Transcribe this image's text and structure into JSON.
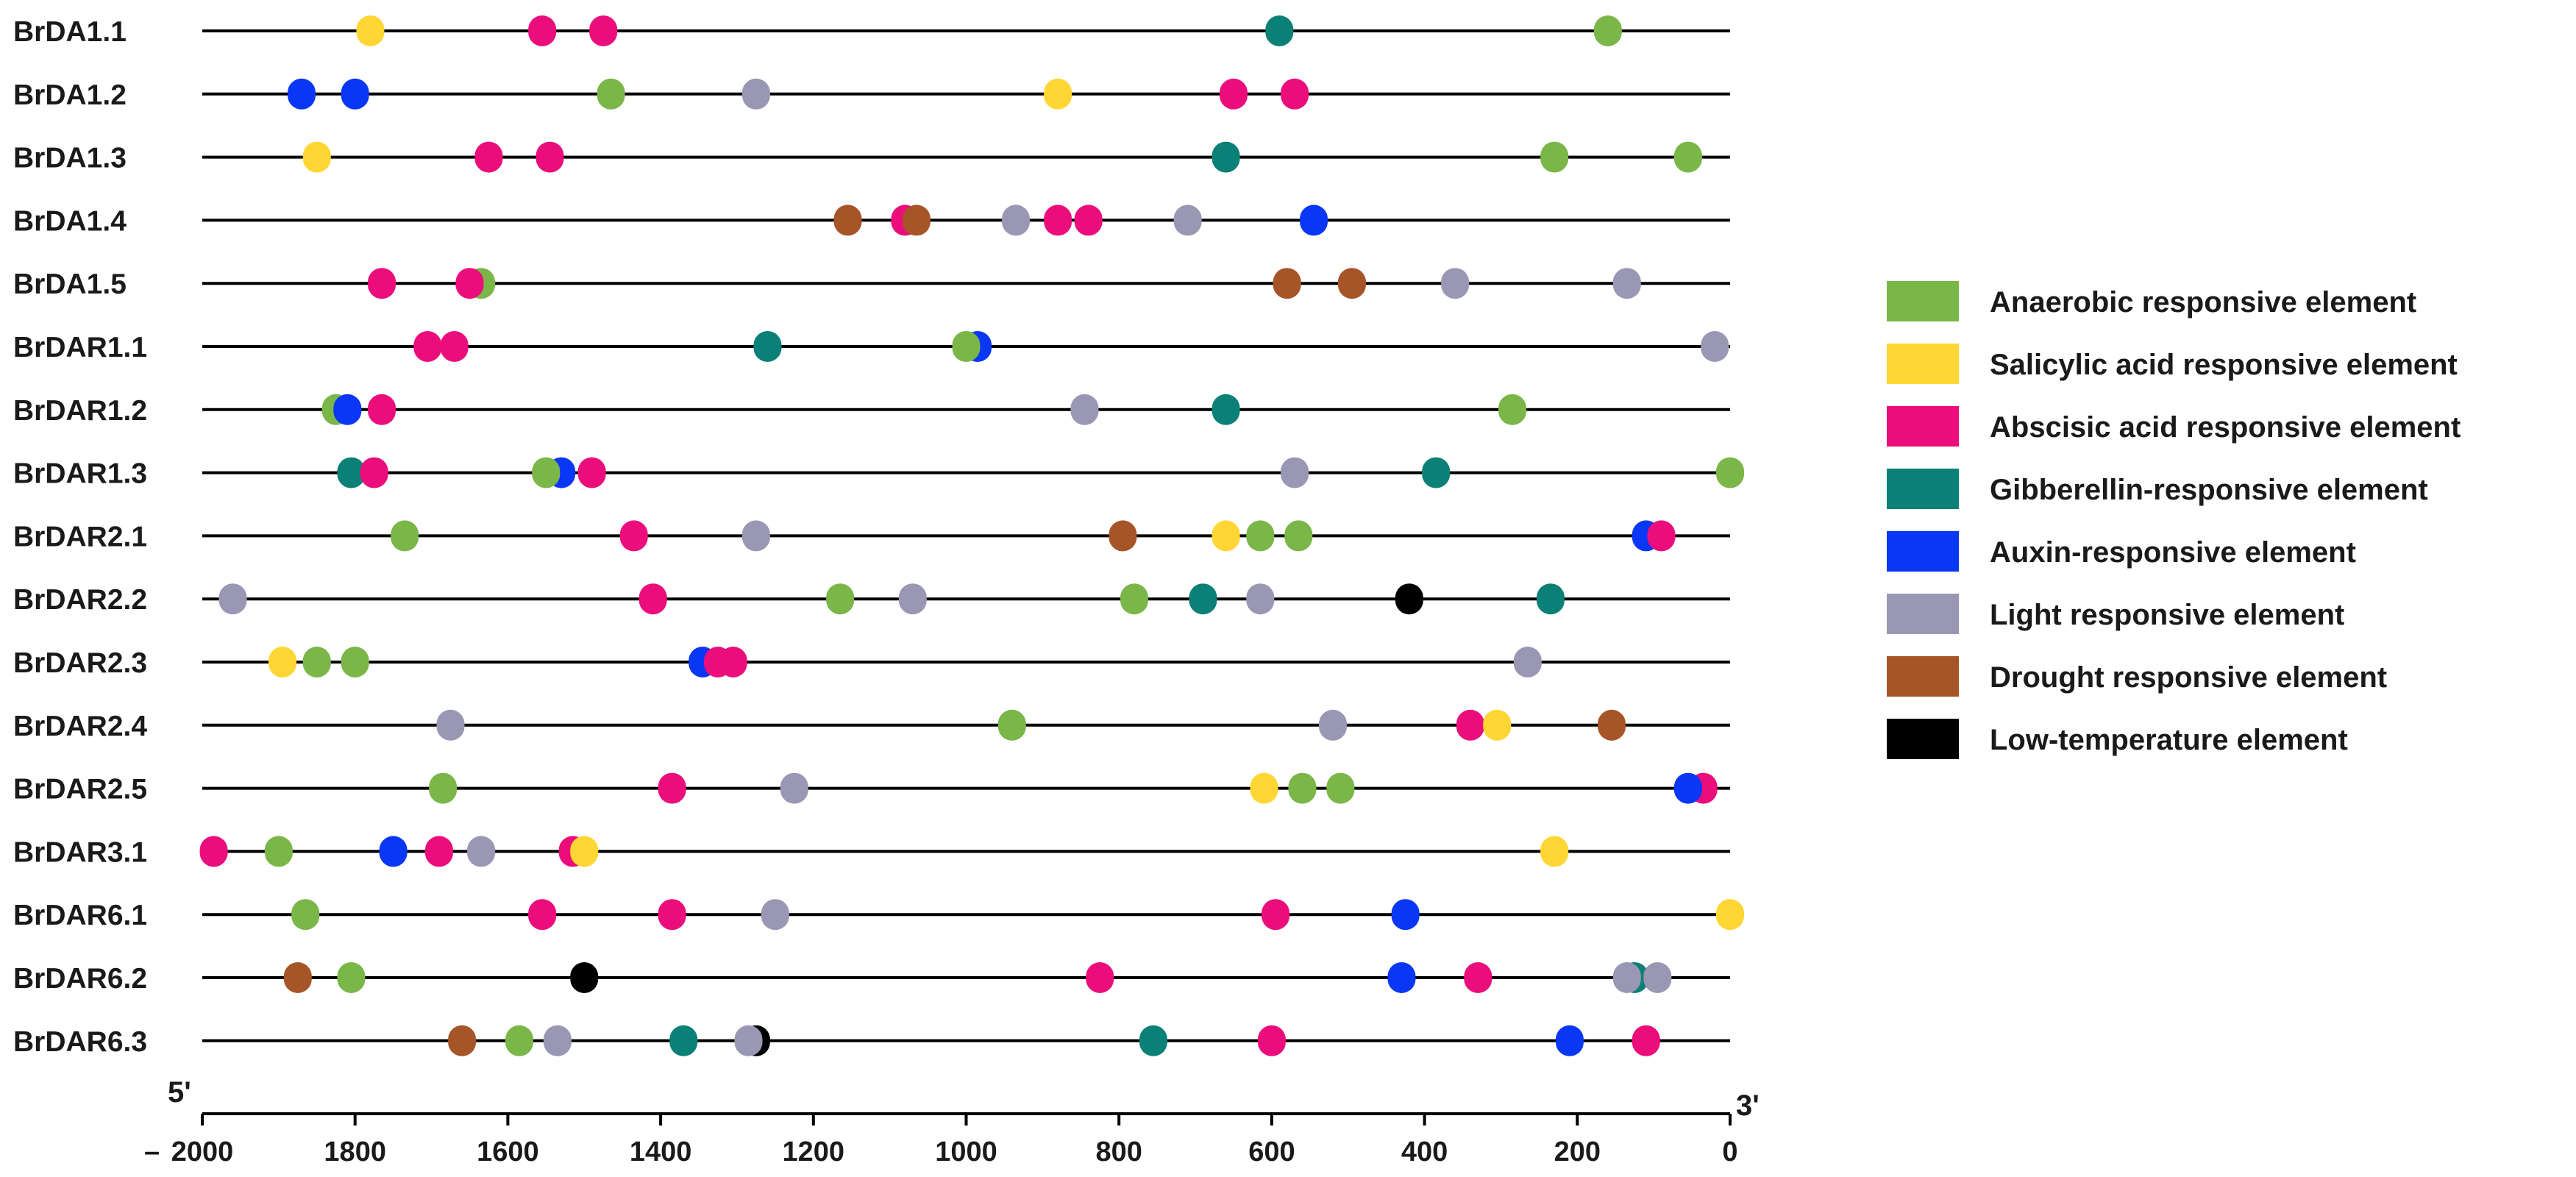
{
  "chart_data": {
    "type": "scatter",
    "xlim": [
      2000,
      0
    ],
    "x_ticks": [
      "2000",
      "1800",
      "1600",
      "1400",
      "1200",
      "1000",
      "800",
      "600",
      "400",
      "200",
      "0"
    ],
    "x_tick_values": [
      2000,
      1800,
      1600,
      1400,
      1200,
      1000,
      800,
      600,
      400,
      200,
      0
    ],
    "axis_prefix": "–",
    "left_end_label": "5'",
    "right_end_label": "3'",
    "legend_position": "right",
    "element_types": [
      {
        "key": "anaerobic",
        "label": "Anaerobic responsive element",
        "color": "#7ab648"
      },
      {
        "key": "salicylic",
        "label": "Salicylic acid responsive element",
        "color": "#ffd633"
      },
      {
        "key": "abscisic",
        "label": "Abscisic acid responsive element",
        "color": "#ec0d7c"
      },
      {
        "key": "gibberellin",
        "label": "Gibberellin-responsive element",
        "color": "#0b8077"
      },
      {
        "key": "auxin",
        "label": "Auxin-responsive element",
        "color": "#0a36f5"
      },
      {
        "key": "light",
        "label": "Light responsive element",
        "color": "#9a97b4"
      },
      {
        "key": "drought",
        "label": "Drought responsive element",
        "color": "#a65528"
      },
      {
        "key": "lowtemp",
        "label": "Low-temperature element",
        "color": "#000000"
      }
    ],
    "genes": [
      {
        "name": "BrDA1.1",
        "elements": [
          {
            "type": "salicylic",
            "x": 1780
          },
          {
            "type": "abscisic",
            "x": 1555
          },
          {
            "type": "abscisic",
            "x": 1475
          },
          {
            "type": "gibberellin",
            "x": 590
          },
          {
            "type": "anaerobic",
            "x": 160
          }
        ]
      },
      {
        "name": "BrDA1.2",
        "elements": [
          {
            "type": "auxin",
            "x": 1870
          },
          {
            "type": "auxin",
            "x": 1800
          },
          {
            "type": "anaerobic",
            "x": 1465
          },
          {
            "type": "light",
            "x": 1275
          },
          {
            "type": "salicylic",
            "x": 880
          },
          {
            "type": "abscisic",
            "x": 650
          },
          {
            "type": "abscisic",
            "x": 570
          }
        ]
      },
      {
        "name": "BrDA1.3",
        "elements": [
          {
            "type": "salicylic",
            "x": 1850
          },
          {
            "type": "abscisic",
            "x": 1625
          },
          {
            "type": "abscisic",
            "x": 1545
          },
          {
            "type": "gibberellin",
            "x": 660
          },
          {
            "type": "anaerobic",
            "x": 230
          },
          {
            "type": "anaerobic",
            "x": 55
          }
        ]
      },
      {
        "name": "BrDA1.4",
        "elements": [
          {
            "type": "drought",
            "x": 1155
          },
          {
            "type": "abscisic",
            "x": 1080
          },
          {
            "type": "drought",
            "x": 1065
          },
          {
            "type": "light",
            "x": 935
          },
          {
            "type": "abscisic",
            "x": 880
          },
          {
            "type": "abscisic",
            "x": 840
          },
          {
            "type": "light",
            "x": 710
          },
          {
            "type": "auxin",
            "x": 545
          }
        ]
      },
      {
        "name": "BrDA1.5",
        "elements": [
          {
            "type": "abscisic",
            "x": 1765
          },
          {
            "type": "anaerobic",
            "x": 1635
          },
          {
            "type": "abscisic",
            "x": 1650
          },
          {
            "type": "drought",
            "x": 580
          },
          {
            "type": "drought",
            "x": 495
          },
          {
            "type": "light",
            "x": 360
          },
          {
            "type": "light",
            "x": 135
          }
        ]
      },
      {
        "name": "BrDAR1.1",
        "elements": [
          {
            "type": "abscisic",
            "x": 1705
          },
          {
            "type": "abscisic",
            "x": 1670
          },
          {
            "type": "gibberellin",
            "x": 1260
          },
          {
            "type": "auxin",
            "x": 985
          },
          {
            "type": "anaerobic",
            "x": 1000
          },
          {
            "type": "light",
            "x": 20
          }
        ]
      },
      {
        "name": "BrDAR1.2",
        "elements": [
          {
            "type": "anaerobic",
            "x": 1825
          },
          {
            "type": "auxin",
            "x": 1810
          },
          {
            "type": "abscisic",
            "x": 1765
          },
          {
            "type": "light",
            "x": 845
          },
          {
            "type": "gibberellin",
            "x": 660
          },
          {
            "type": "anaerobic",
            "x": 285
          }
        ]
      },
      {
        "name": "BrDAR1.3",
        "elements": [
          {
            "type": "gibberellin",
            "x": 1805
          },
          {
            "type": "abscisic",
            "x": 1775
          },
          {
            "type": "auxin",
            "x": 1530
          },
          {
            "type": "anaerobic",
            "x": 1550
          },
          {
            "type": "abscisic",
            "x": 1490
          },
          {
            "type": "light",
            "x": 570
          },
          {
            "type": "gibberellin",
            "x": 385
          },
          {
            "type": "anaerobic",
            "x": 0
          }
        ]
      },
      {
        "name": "BrDAR2.1",
        "elements": [
          {
            "type": "anaerobic",
            "x": 1735
          },
          {
            "type": "abscisic",
            "x": 1435
          },
          {
            "type": "light",
            "x": 1275
          },
          {
            "type": "drought",
            "x": 795
          },
          {
            "type": "salicylic",
            "x": 660
          },
          {
            "type": "anaerobic",
            "x": 615
          },
          {
            "type": "anaerobic",
            "x": 565
          },
          {
            "type": "auxin",
            "x": 110
          },
          {
            "type": "abscisic",
            "x": 90
          }
        ]
      },
      {
        "name": "BrDAR2.2",
        "elements": [
          {
            "type": "light",
            "x": 1960
          },
          {
            "type": "abscisic",
            "x": 1410
          },
          {
            "type": "anaerobic",
            "x": 1165
          },
          {
            "type": "light",
            "x": 1070
          },
          {
            "type": "anaerobic",
            "x": 780
          },
          {
            "type": "gibberellin",
            "x": 690
          },
          {
            "type": "light",
            "x": 615
          },
          {
            "type": "lowtemp",
            "x": 420
          },
          {
            "type": "gibberellin",
            "x": 235
          }
        ]
      },
      {
        "name": "BrDAR2.3",
        "elements": [
          {
            "type": "salicylic",
            "x": 1895
          },
          {
            "type": "anaerobic",
            "x": 1850
          },
          {
            "type": "anaerobic",
            "x": 1800
          },
          {
            "type": "auxin",
            "x": 1345
          },
          {
            "type": "abscisic",
            "x": 1325
          },
          {
            "type": "abscisic",
            "x": 1305
          },
          {
            "type": "light",
            "x": 265
          }
        ]
      },
      {
        "name": "BrDAR2.4",
        "elements": [
          {
            "type": "light",
            "x": 1675
          },
          {
            "type": "anaerobic",
            "x": 940
          },
          {
            "type": "light",
            "x": 520
          },
          {
            "type": "abscisic",
            "x": 340
          },
          {
            "type": "salicylic",
            "x": 305
          },
          {
            "type": "drought",
            "x": 155
          }
        ]
      },
      {
        "name": "BrDAR2.5",
        "elements": [
          {
            "type": "anaerobic",
            "x": 1685
          },
          {
            "type": "abscisic",
            "x": 1385
          },
          {
            "type": "light",
            "x": 1225
          },
          {
            "type": "salicylic",
            "x": 610
          },
          {
            "type": "anaerobic",
            "x": 560
          },
          {
            "type": "anaerobic",
            "x": 510
          },
          {
            "type": "abscisic",
            "x": 35
          },
          {
            "type": "auxin",
            "x": 55
          }
        ]
      },
      {
        "name": "BrDAR3.1",
        "elements": [
          {
            "type": "abscisic",
            "x": 1985
          },
          {
            "type": "anaerobic",
            "x": 1900
          },
          {
            "type": "auxin",
            "x": 1750
          },
          {
            "type": "abscisic",
            "x": 1690
          },
          {
            "type": "light",
            "x": 1635
          },
          {
            "type": "abscisic",
            "x": 1515
          },
          {
            "type": "salicylic",
            "x": 1500
          },
          {
            "type": "salicylic",
            "x": 230
          }
        ]
      },
      {
        "name": "BrDAR6.1",
        "elements": [
          {
            "type": "anaerobic",
            "x": 1865
          },
          {
            "type": "abscisic",
            "x": 1555
          },
          {
            "type": "abscisic",
            "x": 1385
          },
          {
            "type": "light",
            "x": 1250
          },
          {
            "type": "abscisic",
            "x": 595
          },
          {
            "type": "auxin",
            "x": 425
          },
          {
            "type": "salicylic",
            "x": 0
          }
        ]
      },
      {
        "name": "BrDAR6.2",
        "elements": [
          {
            "type": "drought",
            "x": 1875
          },
          {
            "type": "anaerobic",
            "x": 1805
          },
          {
            "type": "lowtemp",
            "x": 1500
          },
          {
            "type": "abscisic",
            "x": 825
          },
          {
            "type": "auxin",
            "x": 430
          },
          {
            "type": "abscisic",
            "x": 330
          },
          {
            "type": "gibberellin",
            "x": 125
          },
          {
            "type": "light",
            "x": 135
          },
          {
            "type": "light",
            "x": 95
          }
        ]
      },
      {
        "name": "BrDAR6.3",
        "elements": [
          {
            "type": "drought",
            "x": 1660
          },
          {
            "type": "anaerobic",
            "x": 1585
          },
          {
            "type": "light",
            "x": 1535
          },
          {
            "type": "gibberellin",
            "x": 1370
          },
          {
            "type": "lowtemp",
            "x": 1275
          },
          {
            "type": "light",
            "x": 1285
          },
          {
            "type": "gibberellin",
            "x": 755
          },
          {
            "type": "abscisic",
            "x": 600
          },
          {
            "type": "auxin",
            "x": 210
          },
          {
            "type": "abscisic",
            "x": 110
          }
        ]
      }
    ]
  }
}
